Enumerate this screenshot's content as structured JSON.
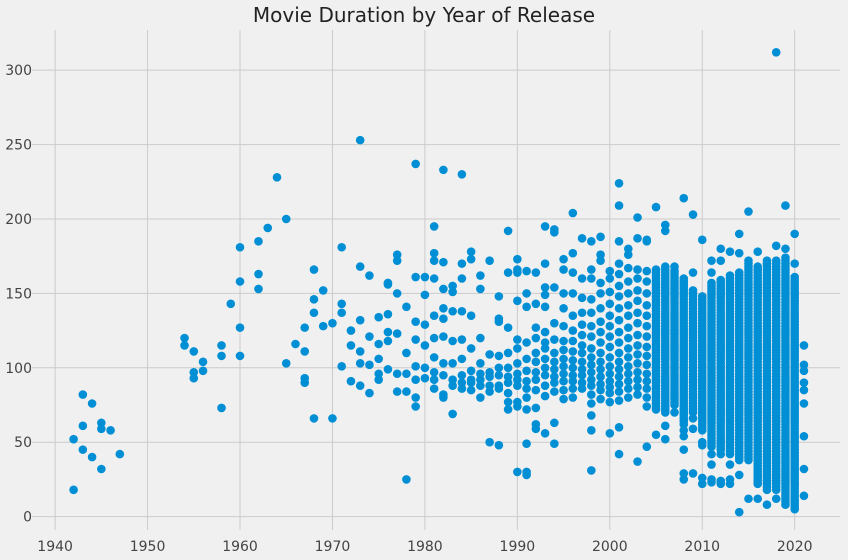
{
  "chart_data": {
    "type": "scatter",
    "title": "Movie Duration by Year of Release",
    "xlabel": "",
    "ylabel": "",
    "xlim": [
      1937.5,
      2024.9
    ],
    "ylim": [
      -9,
      327
    ],
    "xticks": [
      1940,
      1950,
      1960,
      1970,
      1980,
      1990,
      2000,
      2010,
      2020
    ],
    "yticks": [
      0,
      50,
      100,
      150,
      200,
      250,
      300
    ],
    "grid": true,
    "color": "#008fd5",
    "note": "dense: [min,max] marks a year whose points form a near-continuous column",
    "points": [
      {
        "year": 1942,
        "values": [
          52,
          18
        ]
      },
      {
        "year": 1943,
        "values": [
          82,
          61,
          45
        ]
      },
      {
        "year": 1944,
        "values": [
          76,
          40
        ]
      },
      {
        "year": 1945,
        "values": [
          63,
          59,
          32
        ]
      },
      {
        "year": 1946,
        "values": [
          58
        ]
      },
      {
        "year": 1947,
        "values": [
          42
        ]
      },
      {
        "year": 1954,
        "values": [
          120,
          115
        ]
      },
      {
        "year": 1955,
        "values": [
          111,
          97,
          93
        ]
      },
      {
        "year": 1956,
        "values": [
          104,
          98
        ]
      },
      {
        "year": 1958,
        "values": [
          115,
          108,
          73
        ]
      },
      {
        "year": 1959,
        "values": [
          143
        ]
      },
      {
        "year": 1960,
        "values": [
          181,
          158,
          127,
          108
        ]
      },
      {
        "year": 1962,
        "values": [
          185,
          163,
          153
        ]
      },
      {
        "year": 1963,
        "values": [
          194
        ]
      },
      {
        "year": 1964,
        "values": [
          228
        ]
      },
      {
        "year": 1965,
        "values": [
          200,
          103
        ]
      },
      {
        "year": 1966,
        "values": [
          116
        ]
      },
      {
        "year": 1967,
        "values": [
          127,
          111,
          93,
          90
        ]
      },
      {
        "year": 1968,
        "values": [
          166,
          146,
          137,
          66
        ]
      },
      {
        "year": 1969,
        "values": [
          152,
          128
        ]
      },
      {
        "year": 1970,
        "values": [
          130,
          66
        ]
      },
      {
        "year": 1971,
        "values": [
          181,
          143,
          137,
          101
        ]
      },
      {
        "year": 1972,
        "values": [
          125,
          115,
          91
        ]
      },
      {
        "year": 1973,
        "values": [
          253,
          168,
          132,
          111,
          103,
          88
        ]
      },
      {
        "year": 1974,
        "values": [
          162,
          121,
          102,
          83
        ]
      },
      {
        "year": 1975,
        "values": [
          134,
          116,
          106,
          96,
          92
        ]
      },
      {
        "year": 1976,
        "values": [
          157,
          156,
          136,
          124,
          118,
          99
        ]
      },
      {
        "year": 1977,
        "values": [
          176,
          172,
          150,
          123,
          96,
          84
        ]
      },
      {
        "year": 1978,
        "values": [
          141,
          110,
          96,
          84,
          25
        ]
      },
      {
        "year": 1979,
        "values": [
          237,
          161,
          131,
          119,
          101,
          92,
          80,
          74
        ]
      },
      {
        "year": 1980,
        "values": [
          161,
          149,
          129,
          115,
          100,
          93
        ]
      },
      {
        "year": 1981,
        "values": [
          195,
          177,
          172,
          160,
          135,
          120,
          107,
          97,
          92,
          86
        ]
      },
      {
        "year": 1982,
        "values": [
          233,
          171,
          153,
          140,
          133,
          121,
          103,
          95,
          82,
          80
        ]
      },
      {
        "year": 1983,
        "values": [
          155,
          151,
          138,
          118,
          103,
          92,
          88,
          69
        ]
      },
      {
        "year": 1984,
        "values": [
          230,
          170,
          160,
          138,
          119,
          106,
          95,
          90,
          86
        ]
      },
      {
        "year": 1985,
        "values": [
          178,
          173,
          135,
          113,
          98,
          92,
          90,
          85
        ]
      },
      {
        "year": 1986,
        "values": [
          162,
          153,
          120,
          103,
          96,
          92,
          88,
          80
        ]
      },
      {
        "year": 1987,
        "values": [
          172,
          109,
          97,
          94,
          88,
          84,
          50
        ]
      },
      {
        "year": 1988,
        "values": [
          148,
          133,
          131,
          108,
          100,
          95,
          88,
          86,
          48
        ]
      },
      {
        "year": 1989,
        "values": [
          192,
          164,
          127,
          110,
          100,
          94,
          90,
          83,
          77,
          72
        ]
      },
      {
        "year": 1990,
        "values": [
          173,
          166,
          164,
          145,
          119,
          113,
          103,
          96,
          92,
          88,
          77,
          74,
          30
        ]
      },
      {
        "year": 1991,
        "values": [
          165,
          150,
          141,
          117,
          106,
          98,
          91,
          86,
          80,
          72,
          49,
          30,
          28
        ]
      },
      {
        "year": 1992,
        "values": [
          164,
          143,
          127,
          120,
          110,
          104,
          97,
          92,
          85,
          73,
          62,
          59
        ]
      },
      {
        "year": 1993,
        "values": [
          195,
          170,
          154,
          149,
          141,
          124,
          117,
          113,
          106,
          100,
          95,
          88,
          81,
          56
        ]
      },
      {
        "year": 1994,
        "values": [
          193,
          191,
          154,
          130,
          119,
          110,
          104,
          99,
          94,
          90,
          84,
          63,
          49
        ]
      },
      {
        "year": 1995,
        "values": [
          173,
          166,
          150,
          140,
          128,
          118,
          112,
          106,
          101,
          96,
          91,
          85,
          79
        ]
      },
      {
        "year": 1996,
        "values": [
          204,
          177,
          164,
          150,
          135,
          125,
          118,
          111,
          105,
          100,
          95,
          91,
          86,
          80
        ]
      },
      {
        "year": 1997,
        "values": [
          187,
          160,
          147,
          137,
          129,
          122,
          115,
          110,
          104,
          99,
          95,
          90,
          86
        ]
      },
      {
        "year": 1998,
        "values": [
          185,
          166,
          160,
          146,
          137,
          128,
          121,
          113,
          107,
          102,
          97,
          92,
          88,
          82,
          76,
          68,
          58,
          31
        ]
      },
      {
        "year": 1999,
        "values": [
          188,
          176,
          172,
          157,
          150,
          140,
          131,
          124,
          117,
          110,
          104,
          99,
          94,
          89,
          85,
          79
        ]
      },
      {
        "year": 2000,
        "values": [
          165,
          160,
          151,
          143,
          135,
          128,
          121,
          114,
          107,
          101,
          96,
          91,
          87,
          83,
          77,
          56
        ]
      },
      {
        "year": 2001,
        "values": [
          224,
          209,
          185,
          170,
          163,
          155,
          148,
          140,
          132,
          124,
          117,
          110,
          104,
          99,
          94,
          89,
          84,
          78,
          60,
          42
        ]
      },
      {
        "year": 2002,
        "values": [
          180,
          176,
          167,
          158,
          150,
          142,
          135,
          127,
          120,
          113,
          107,
          101,
          96,
          91,
          86,
          80
        ]
      },
      {
        "year": 2003,
        "values": [
          201,
          187,
          166,
          160,
          152,
          145,
          137,
          130,
          122,
          115,
          109,
          103,
          97,
          92,
          87,
          82,
          37
        ]
      },
      {
        "year": 2004,
        "values": [
          186,
          185,
          165,
          158,
          150,
          142,
          135,
          128,
          121,
          114,
          108,
          102,
          96,
          91,
          86,
          80,
          74,
          47
        ]
      },
      {
        "year": 2005,
        "values": [
          208,
          55
        ],
        "dense": [
          72,
          166
        ]
      },
      {
        "year": 2006,
        "values": [
          196,
          192,
          61,
          52
        ],
        "dense": [
          70,
          168
        ]
      },
      {
        "year": 2007,
        "values": [
          168,
          70
        ],
        "dense": [
          75,
          165
        ]
      },
      {
        "year": 2008,
        "values": [
          214,
          58,
          54,
          45,
          29,
          25
        ],
        "dense": [
          62,
          160
        ]
      },
      {
        "year": 2009,
        "values": [
          203,
          164,
          66,
          59,
          29
        ],
        "dense": [
          70,
          152
        ]
      },
      {
        "year": 2010,
        "values": [
          186,
          58,
          50,
          48,
          26,
          22
        ],
        "dense": [
          60,
          148
        ]
      },
      {
        "year": 2011,
        "values": [
          172,
          164,
          42,
          35,
          25,
          23
        ],
        "dense": [
          47,
          158
        ]
      },
      {
        "year": 2012,
        "values": [
          180,
          172,
          42,
          24,
          22
        ],
        "dense": [
          45,
          160
        ]
      },
      {
        "year": 2013,
        "values": [
          178,
          35,
          25,
          22
        ],
        "dense": [
          42,
          162
        ]
      },
      {
        "year": 2014,
        "values": [
          190,
          177,
          38,
          28,
          3
        ],
        "dense": [
          40,
          165
        ]
      },
      {
        "year": 2015,
        "values": [
          205,
          12
        ],
        "dense": [
          38,
          172
        ]
      },
      {
        "year": 2016,
        "values": [
          178,
          12
        ],
        "dense": [
          22,
          168
        ]
      },
      {
        "year": 2017,
        "values": [
          170,
          8
        ],
        "dense": [
          18,
          172
        ]
      },
      {
        "year": 2018,
        "values": [
          312,
          182,
          12
        ],
        "dense": [
          18,
          172
        ]
      },
      {
        "year": 2019,
        "values": [
          209,
          180
        ],
        "dense": [
          8,
          175
        ]
      },
      {
        "year": 2020,
        "values": [
          190,
          170
        ],
        "dense": [
          5,
          162
        ]
      },
      {
        "year": 2021,
        "values": [
          115,
          102,
          98,
          90,
          85,
          76,
          54,
          32,
          14
        ]
      }
    ]
  }
}
